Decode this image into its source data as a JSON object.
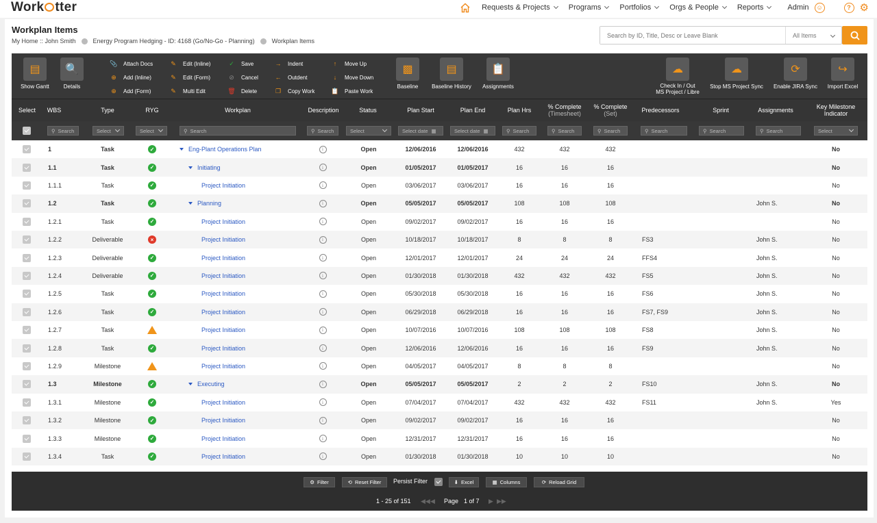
{
  "brand": {
    "logo_text_1": "Work",
    "logo_text_2": "tter"
  },
  "nav": {
    "items": [
      "Requests & Projects",
      "Programs",
      "Portfolios",
      "Orgs & People",
      "Reports"
    ],
    "user": "Admin"
  },
  "page": {
    "title": "Workplan Items",
    "breadcrumb": [
      "My Home :: John Smith",
      "Energy Program Hedging - ID: 4168 (Go/No-Go - Planning)",
      "Workplan Items"
    ]
  },
  "search": {
    "placeholder": "Search by ID, Title, Desc or Leave Blank",
    "scope": "All Items"
  },
  "toolbar": {
    "show_gantt": "Show Gantt",
    "details": "Details",
    "attach_docs": "Attach Docs",
    "add_inline": "Add (Inline)",
    "add_form": "Add (Form)",
    "edit_inline": "Edit (Inline)",
    "edit_form": "Edit (Form)",
    "multi_edit": "Multi Edit",
    "save": "Save",
    "cancel": "Cancel",
    "delete": "Delete",
    "indent": "Indent",
    "outdent": "Outdent",
    "copy_work": "Copy Work",
    "move_up": "Move Up",
    "move_down": "Move Down",
    "paste_work": "Paste Work",
    "baseline": "Baseline",
    "baseline_history": "Baseline History",
    "assignments": "Assignments",
    "check_in_out_1": "Check In / Out",
    "check_in_out_2": "MS Project / Libre",
    "stop_ms_sync": "Stop MS Project Sync",
    "enable_jira": "Enable JIRA Sync",
    "import_excel": "Import Excel"
  },
  "columns": {
    "select": "Select",
    "wbs": "WBS",
    "type": "Type",
    "ryg": "RYG",
    "workplan": "Workplan",
    "description": "Description",
    "status": "Status",
    "plan_start": "Plan Start",
    "plan_end": "Plan End",
    "plan_hrs": "Plan Hrs",
    "pct_ts_1": "% Complete",
    "pct_ts_2": "(Timesheet)",
    "pct_set_1": "% Complete",
    "pct_set_2": "(Set)",
    "predecessors": "Predecessors",
    "sprint": "Sprint",
    "assignments": "Assignments",
    "key_ms_1": "Key Milestone",
    "key_ms_2": "Indicator"
  },
  "filters": {
    "search": "Search",
    "select": "Select",
    "select_date": "Select date"
  },
  "rows": [
    {
      "wbs": "1",
      "type": "Task",
      "ryg": "green",
      "workplan": "Eng-Plant Operations Plan",
      "level": 0,
      "group": true,
      "status": "Open",
      "start": "12/06/2016",
      "end": "12/06/2016",
      "hrs": "432",
      "pts": "432",
      "pset": "432",
      "pred": "",
      "assign": "",
      "key": "No"
    },
    {
      "wbs": "1.1",
      "type": "Task",
      "ryg": "green",
      "workplan": "Initiating",
      "level": 1,
      "group": true,
      "status": "Open",
      "start": "01/05/2017",
      "end": "01/05/2017",
      "hrs": "16",
      "pts": "16",
      "pset": "16",
      "pred": "",
      "assign": "",
      "key": "No"
    },
    {
      "wbs": "1.1.1",
      "type": "Task",
      "ryg": "green",
      "workplan": "Project Initiation",
      "level": 2,
      "group": false,
      "status": "Open",
      "start": "03/06/2017",
      "end": "03/06/2017",
      "hrs": "16",
      "pts": "16",
      "pset": "16",
      "pred": "",
      "assign": "",
      "key": "No"
    },
    {
      "wbs": "1.2",
      "type": "Task",
      "ryg": "green",
      "workplan": "Planning",
      "level": 1,
      "group": true,
      "status": "Open",
      "start": "05/05/2017",
      "end": "05/05/2017",
      "hrs": "108",
      "pts": "108",
      "pset": "108",
      "pred": "",
      "assign": "John S.",
      "key": "No"
    },
    {
      "wbs": "1.2.1",
      "type": "Task",
      "ryg": "green",
      "workplan": "Project Initiation",
      "level": 2,
      "group": false,
      "status": "Open",
      "start": "09/02/2017",
      "end": "09/02/2017",
      "hrs": "16",
      "pts": "16",
      "pset": "16",
      "pred": "",
      "assign": "",
      "key": "No"
    },
    {
      "wbs": "1.2.2",
      "type": "Deliverable",
      "ryg": "red",
      "workplan": "Project Initiation",
      "level": 2,
      "group": false,
      "status": "Open",
      "start": "10/18/2017",
      "end": "10/18/2017",
      "hrs": "8",
      "pts": "8",
      "pset": "8",
      "pred": "FS3",
      "assign": "John S.",
      "key": "No"
    },
    {
      "wbs": "1.2.3",
      "type": "Deliverable",
      "ryg": "green",
      "workplan": "Project Initiation",
      "level": 2,
      "group": false,
      "status": "Open",
      "start": "12/01/2017",
      "end": "12/01/2017",
      "hrs": "24",
      "pts": "24",
      "pset": "24",
      "pred": "FFS4",
      "assign": "John S.",
      "key": "No"
    },
    {
      "wbs": "1.2.4",
      "type": "Deliverable",
      "ryg": "green",
      "workplan": "Project Initiation",
      "level": 2,
      "group": false,
      "status": "Open",
      "start": "01/30/2018",
      "end": "01/30/2018",
      "hrs": "432",
      "pts": "432",
      "pset": "432",
      "pred": "FS5",
      "assign": "John S.",
      "key": "No"
    },
    {
      "wbs": "1.2.5",
      "type": "Task",
      "ryg": "green",
      "workplan": "Project Initiation",
      "level": 2,
      "group": false,
      "status": "Open",
      "start": "05/30/2018",
      "end": "05/30/2018",
      "hrs": "16",
      "pts": "16",
      "pset": "16",
      "pred": "FS6",
      "assign": "John S.",
      "key": "No"
    },
    {
      "wbs": "1.2.6",
      "type": "Task",
      "ryg": "green",
      "workplan": "Project Initiation",
      "level": 2,
      "group": false,
      "status": "Open",
      "start": "06/29/2018",
      "end": "06/29/2018",
      "hrs": "16",
      "pts": "16",
      "pset": "16",
      "pred": "FS7, FS9",
      "assign": "John S.",
      "key": "No"
    },
    {
      "wbs": "1.2.7",
      "type": "Task",
      "ryg": "yellow",
      "workplan": "Project Initiation",
      "level": 2,
      "group": false,
      "status": "Open",
      "start": "10/07/2016",
      "end": "10/07/2016",
      "hrs": "108",
      "pts": "108",
      "pset": "108",
      "pred": "FS8",
      "assign": "John S.",
      "key": "No"
    },
    {
      "wbs": "1.2.8",
      "type": "Task",
      "ryg": "green",
      "workplan": "Project Initiation",
      "level": 2,
      "group": false,
      "status": "Open",
      "start": "12/06/2016",
      "end": "12/06/2016",
      "hrs": "16",
      "pts": "16",
      "pset": "16",
      "pred": "FS9",
      "assign": "John S.",
      "key": "No"
    },
    {
      "wbs": "1.2.9",
      "type": "Milestone",
      "ryg": "yellow",
      "workplan": "Project Initiation",
      "level": 2,
      "group": false,
      "status": "Open",
      "start": "04/05/2017",
      "end": "04/05/2017",
      "hrs": "8",
      "pts": "8",
      "pset": "8",
      "pred": "",
      "assign": "",
      "key": "No"
    },
    {
      "wbs": "1.3",
      "type": "Milestone",
      "ryg": "green",
      "workplan": "Executing",
      "level": 1,
      "group": true,
      "status": "Open",
      "start": "05/05/2017",
      "end": "05/05/2017",
      "hrs": "2",
      "pts": "2",
      "pset": "2",
      "pred": "FS10",
      "assign": "John S.",
      "key": "No"
    },
    {
      "wbs": "1.3.1",
      "type": "Milestone",
      "ryg": "green",
      "workplan": "Project Initiation",
      "level": 2,
      "group": false,
      "status": "Open",
      "start": "07/04/2017",
      "end": "07/04/2017",
      "hrs": "432",
      "pts": "432",
      "pset": "432",
      "pred": "FS11",
      "assign": "John S.",
      "key": "Yes"
    },
    {
      "wbs": "1.3.2",
      "type": "Milestone",
      "ryg": "green",
      "workplan": "Project Initiation",
      "level": 2,
      "group": false,
      "status": "Open",
      "start": "09/02/2017",
      "end": "09/02/2017",
      "hrs": "16",
      "pts": "16",
      "pset": "16",
      "pred": "",
      "assign": "",
      "key": "No"
    },
    {
      "wbs": "1.3.3",
      "type": "Milestone",
      "ryg": "green",
      "workplan": "Project Initiation",
      "level": 2,
      "group": false,
      "status": "Open",
      "start": "12/31/2017",
      "end": "12/31/2017",
      "hrs": "16",
      "pts": "16",
      "pset": "16",
      "pred": "",
      "assign": "",
      "key": "No"
    },
    {
      "wbs": "1.3.4",
      "type": "Task",
      "ryg": "green",
      "workplan": "Project Initiation",
      "level": 2,
      "group": false,
      "status": "Open",
      "start": "01/30/2018",
      "end": "01/30/2018",
      "hrs": "10",
      "pts": "10",
      "pset": "10",
      "pred": "",
      "assign": "",
      "key": "No"
    }
  ],
  "footer": {
    "filter": "Filter",
    "reset_filter": "Reset Filter",
    "persist_filter": "Persist Filter",
    "excel": "Excel",
    "columns": "Columns",
    "reload": "Reload Grid",
    "range": "1 - 25 of 151",
    "page_label": "Page",
    "page_value": "1 of 7"
  },
  "colors": {
    "accent": "#f0941a",
    "link": "#2b59c3",
    "ryg_green": "#2eaa3c",
    "ryg_red": "#e03a2a",
    "ryg_yellow": "#f0941a"
  }
}
